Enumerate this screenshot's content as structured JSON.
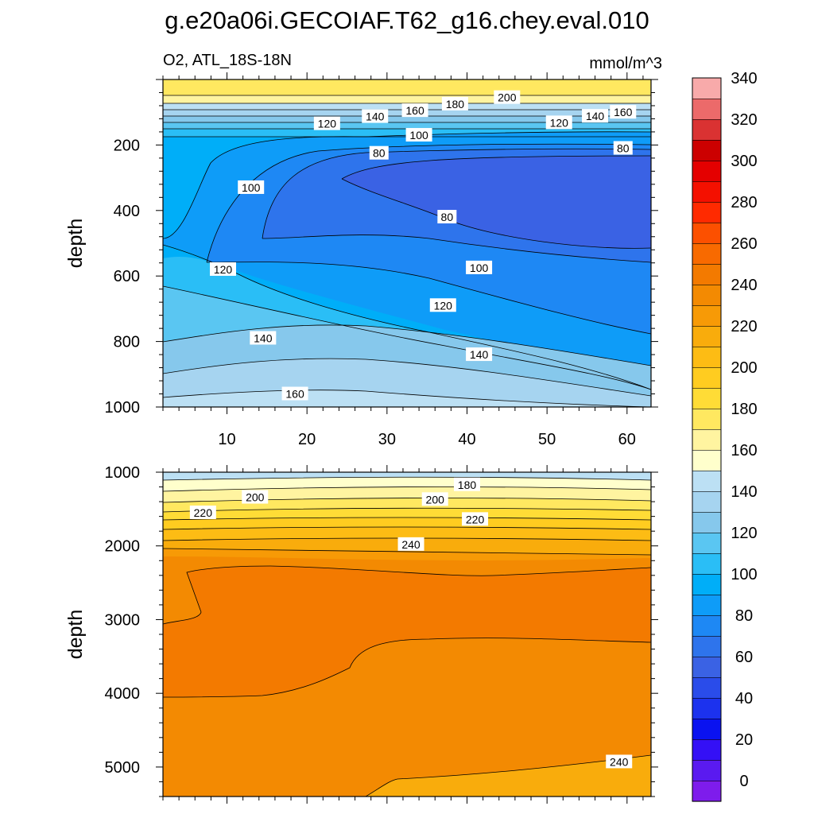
{
  "chart_data": {
    "type": "contour",
    "title": "g.e20a06i.GECOIAF.T62_g16.chey.eval.010",
    "variable_label": "O2, ATL_18S-18N",
    "units_label": "mmol/m^3",
    "x_ticks": [
      "10",
      "20",
      "30",
      "40",
      "50",
      "60"
    ],
    "x_range": [
      2,
      63
    ],
    "colorbar": {
      "tick_labels": [
        "0",
        "20",
        "40",
        "60",
        "80",
        "100",
        "120",
        "140",
        "160",
        "180",
        "200",
        "220",
        "240",
        "260",
        "280",
        "300",
        "320",
        "340"
      ],
      "colors": [
        "#7E1CEC",
        "#5A1AF0",
        "#3410F6",
        "#0A12F0",
        "#1C32EE",
        "#2A4CEA",
        "#3A62E4",
        "#2E74EC",
        "#1E88F4",
        "#0E9CF8",
        "#00AEF8",
        "#2ABEF6",
        "#5AC6F2",
        "#86C8EC",
        "#A6D4F0",
        "#BCE0F4",
        "#FFFFCC",
        "#FFF4A0",
        "#FFE860",
        "#FFDC36",
        "#FFCC20",
        "#FDBC14",
        "#F9AC0C",
        "#F79A06",
        "#F38A02",
        "#F37A00",
        "#F86A00",
        "#FC5000",
        "#FF2A00",
        "#F41000",
        "#E40000",
        "#CC0000",
        "#DA3232",
        "#EC6A6A",
        "#F8AAAA"
      ]
    },
    "panels": [
      {
        "name": "upper",
        "ylabel": "depth",
        "y_range": [
          0,
          1000
        ],
        "y_ticks": [
          "200",
          "400",
          "600",
          "800",
          "1000"
        ],
        "contour_labels": [
          {
            "text": "200",
            "x": 45,
            "depth": 55
          },
          {
            "text": "180",
            "x": 38.5,
            "depth": 75
          },
          {
            "text": "160",
            "x": 33.5,
            "depth": 95
          },
          {
            "text": "140",
            "x": 28.5,
            "depth": 113
          },
          {
            "text": "120",
            "x": 22.5,
            "depth": 135
          },
          {
            "text": "100",
            "x": 34,
            "depth": 170
          },
          {
            "text": "80",
            "x": 29,
            "depth": 225
          },
          {
            "text": "160",
            "x": 59.5,
            "depth": 100
          },
          {
            "text": "140",
            "x": 56,
            "depth": 112
          },
          {
            "text": "120",
            "x": 51.5,
            "depth": 132
          },
          {
            "text": "80",
            "x": 59.5,
            "depth": 210
          },
          {
            "text": "100",
            "x": 13,
            "depth": 330
          },
          {
            "text": "80",
            "x": 37.5,
            "depth": 420
          },
          {
            "text": "100",
            "x": 41.5,
            "depth": 575
          },
          {
            "text": "120",
            "x": 9.5,
            "depth": 580
          },
          {
            "text": "120",
            "x": 37,
            "depth": 690
          },
          {
            "text": "140",
            "x": 14.5,
            "depth": 790
          },
          {
            "text": "140",
            "x": 41.5,
            "depth": 840
          },
          {
            "text": "160",
            "x": 18.5,
            "depth": 960
          }
        ]
      },
      {
        "name": "lower",
        "ylabel": "depth",
        "y_range": [
          1000,
          5400
        ],
        "y_ticks": [
          "1000",
          "2000",
          "3000",
          "4000",
          "5000"
        ],
        "contour_labels": [
          {
            "text": "180",
            "x": 40,
            "depth": 1170
          },
          {
            "text": "200",
            "x": 13.5,
            "depth": 1340
          },
          {
            "text": "200",
            "x": 36,
            "depth": 1370
          },
          {
            "text": "220",
            "x": 7,
            "depth": 1550
          },
          {
            "text": "220",
            "x": 41,
            "depth": 1640
          },
          {
            "text": "240",
            "x": 33,
            "depth": 1980
          },
          {
            "text": "240",
            "x": 59,
            "depth": 4930
          }
        ]
      }
    ]
  }
}
